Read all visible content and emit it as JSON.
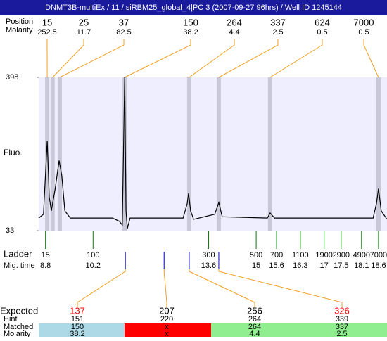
{
  "chart_data": {
    "type": "electropherogram",
    "title": "DNMT3B-multiEx / 11 / siRBM25_global_4|PC 3 (2007-09-27 96hrs) / Well ID 1245144",
    "y_label": "Fluo.",
    "ylim": [
      33,
      398
    ],
    "yticks": [
      33,
      398
    ],
    "xlim": [
      8.6,
      18.85
    ],
    "plot_color": "#eeeeff",
    "peaks": {
      "labels": [
        "Position",
        "Molarity"
      ],
      "sizes": [
        15,
        25,
        37,
        150,
        264,
        337,
        624,
        7000
      ],
      "molarity": [
        252.5,
        11.7,
        82.5,
        38.2,
        4.4,
        2.5,
        0.5,
        0.5
      ],
      "time": [
        8.85,
        9.01,
        9.22,
        11.13,
        13.03,
        13.9,
        15.41,
        18.6
      ],
      "color": "#f0a020",
      "band_color": "#c8c8d8"
    },
    "trace": {
      "color": "#000000",
      "x": [
        8.6,
        8.74,
        8.85,
        8.91,
        8.97,
        9.08,
        9.2,
        9.28,
        9.37,
        9.53,
        10.77,
        10.98,
        11.06,
        11.13,
        11.17,
        11.21,
        11.29,
        12.85,
        12.97,
        13.01,
        13.07,
        13.16,
        13.78,
        13.9,
        14.0,
        15.33,
        15.41,
        15.54,
        18.44,
        18.54,
        18.6,
        18.68,
        18.85
      ],
      "y": [
        63,
        72,
        247,
        113,
        80,
        130,
        200,
        164,
        80,
        63,
        63,
        55,
        46,
        398,
        80,
        38,
        63,
        63,
        97,
        122,
        80,
        60,
        72,
        100,
        66,
        63,
        75,
        63,
        63,
        97,
        133,
        80,
        60
      ]
    },
    "ladder": {
      "label": "Ladder",
      "time_label": "Mig. time",
      "sizes": [
        15,
        100,
        300,
        500,
        700,
        1100,
        1900,
        2900,
        4900,
        7000
      ],
      "times": [
        8.8,
        10.2,
        13.6,
        15,
        15.6,
        16.3,
        17,
        17.5,
        18.1,
        18.6
      ],
      "color": "#008000"
    },
    "expected": {
      "labels": [
        "Expected",
        "Hint",
        "Matched",
        "Molarity"
      ],
      "expected": [
        137,
        207,
        256,
        326
      ],
      "expected_colors": [
        "#ff0000",
        "#000000",
        "#000000",
        "#ff0000"
      ],
      "hint": [
        151,
        220,
        264,
        339
      ],
      "matched": [
        150,
        "x",
        264,
        337
      ],
      "molarity": [
        38.2,
        "x",
        4.4,
        2.5
      ],
      "band_colors": [
        "#add8e6",
        "#ff0000",
        "#90ee90",
        "#90ee90"
      ],
      "time": [
        11.15,
        12.29,
        13.03,
        13.9
      ],
      "tick_color": "#0000c0",
      "line_color": "#f0a020"
    }
  }
}
